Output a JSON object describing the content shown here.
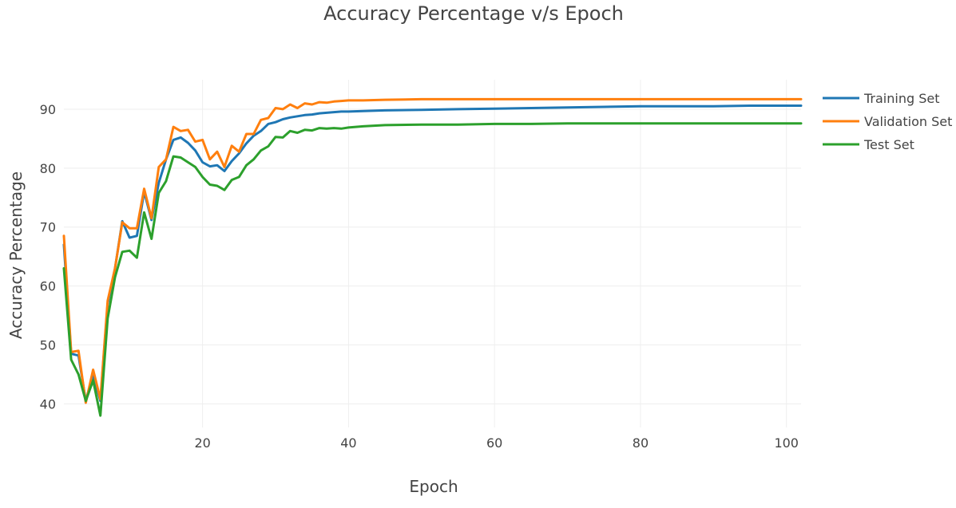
{
  "chart_data": {
    "type": "line",
    "title": "Accuracy Percentage v/s Epoch",
    "xlabel": "Epoch",
    "ylabel": "Accuracy Percentage",
    "xlim": [
      1,
      102
    ],
    "ylim": [
      36,
      95
    ],
    "xticks": [
      20,
      40,
      60,
      80,
      100
    ],
    "yticks": [
      40,
      50,
      60,
      70,
      80,
      90
    ],
    "grid": true,
    "legend_position": "top-right",
    "x": [
      1,
      2,
      3,
      4,
      5,
      6,
      7,
      8,
      9,
      10,
      11,
      12,
      13,
      14,
      15,
      16,
      17,
      18,
      19,
      20,
      21,
      22,
      23,
      24,
      25,
      26,
      27,
      28,
      29,
      30,
      31,
      32,
      33,
      34,
      35,
      36,
      37,
      38,
      39,
      40,
      42,
      45,
      50,
      55,
      60,
      65,
      70,
      75,
      80,
      85,
      90,
      95,
      102
    ],
    "series": [
      {
        "name": "Training Set",
        "color": "#1f77b4",
        "values": [
          67,
          48.5,
          48.2,
          40.5,
          45,
          40.5,
          57,
          63,
          71,
          68.2,
          68.5,
          76,
          71.2,
          77.5,
          81.5,
          84.8,
          85.2,
          84.3,
          83,
          81,
          80.3,
          80.5,
          79.5,
          81.2,
          82.5,
          84.2,
          85.5,
          86.3,
          87.5,
          87.8,
          88.3,
          88.6,
          88.8,
          89,
          89.1,
          89.3,
          89.4,
          89.5,
          89.6,
          89.6,
          89.7,
          89.8,
          89.9,
          90,
          90.1,
          90.2,
          90.3,
          90.4,
          90.5,
          90.5,
          90.5,
          90.6,
          90.6
        ]
      },
      {
        "name": "Validation Set",
        "color": "#ff7f0e",
        "values": [
          68.5,
          48.8,
          49,
          40.2,
          45.8,
          40.8,
          57.5,
          63,
          70.8,
          69.8,
          69.8,
          76.5,
          71.5,
          80.2,
          81.5,
          87,
          86.3,
          86.5,
          84.5,
          84.8,
          81.5,
          82.8,
          80.2,
          83.8,
          82.8,
          85.8,
          85.8,
          88.2,
          88.5,
          90.2,
          90,
          90.8,
          90.2,
          91,
          90.8,
          91.2,
          91.1,
          91.3,
          91.4,
          91.5,
          91.5,
          91.6,
          91.7,
          91.7,
          91.7,
          91.7,
          91.7,
          91.7,
          91.7,
          91.7,
          91.7,
          91.7,
          91.7
        ]
      },
      {
        "name": "Test Set",
        "color": "#2ca02c",
        "values": [
          63,
          47.5,
          45,
          40.5,
          44,
          38,
          54.5,
          61.5,
          65.8,
          66,
          64.8,
          72.5,
          68,
          75.8,
          77.8,
          82,
          81.8,
          81,
          80.2,
          78.5,
          77.2,
          77,
          76.3,
          78,
          78.5,
          80.5,
          81.5,
          83,
          83.7,
          85.3,
          85.2,
          86.3,
          86,
          86.5,
          86.4,
          86.8,
          86.7,
          86.8,
          86.7,
          86.9,
          87.1,
          87.3,
          87.4,
          87.4,
          87.5,
          87.5,
          87.6,
          87.6,
          87.6,
          87.6,
          87.6,
          87.6,
          87.6
        ]
      }
    ]
  }
}
